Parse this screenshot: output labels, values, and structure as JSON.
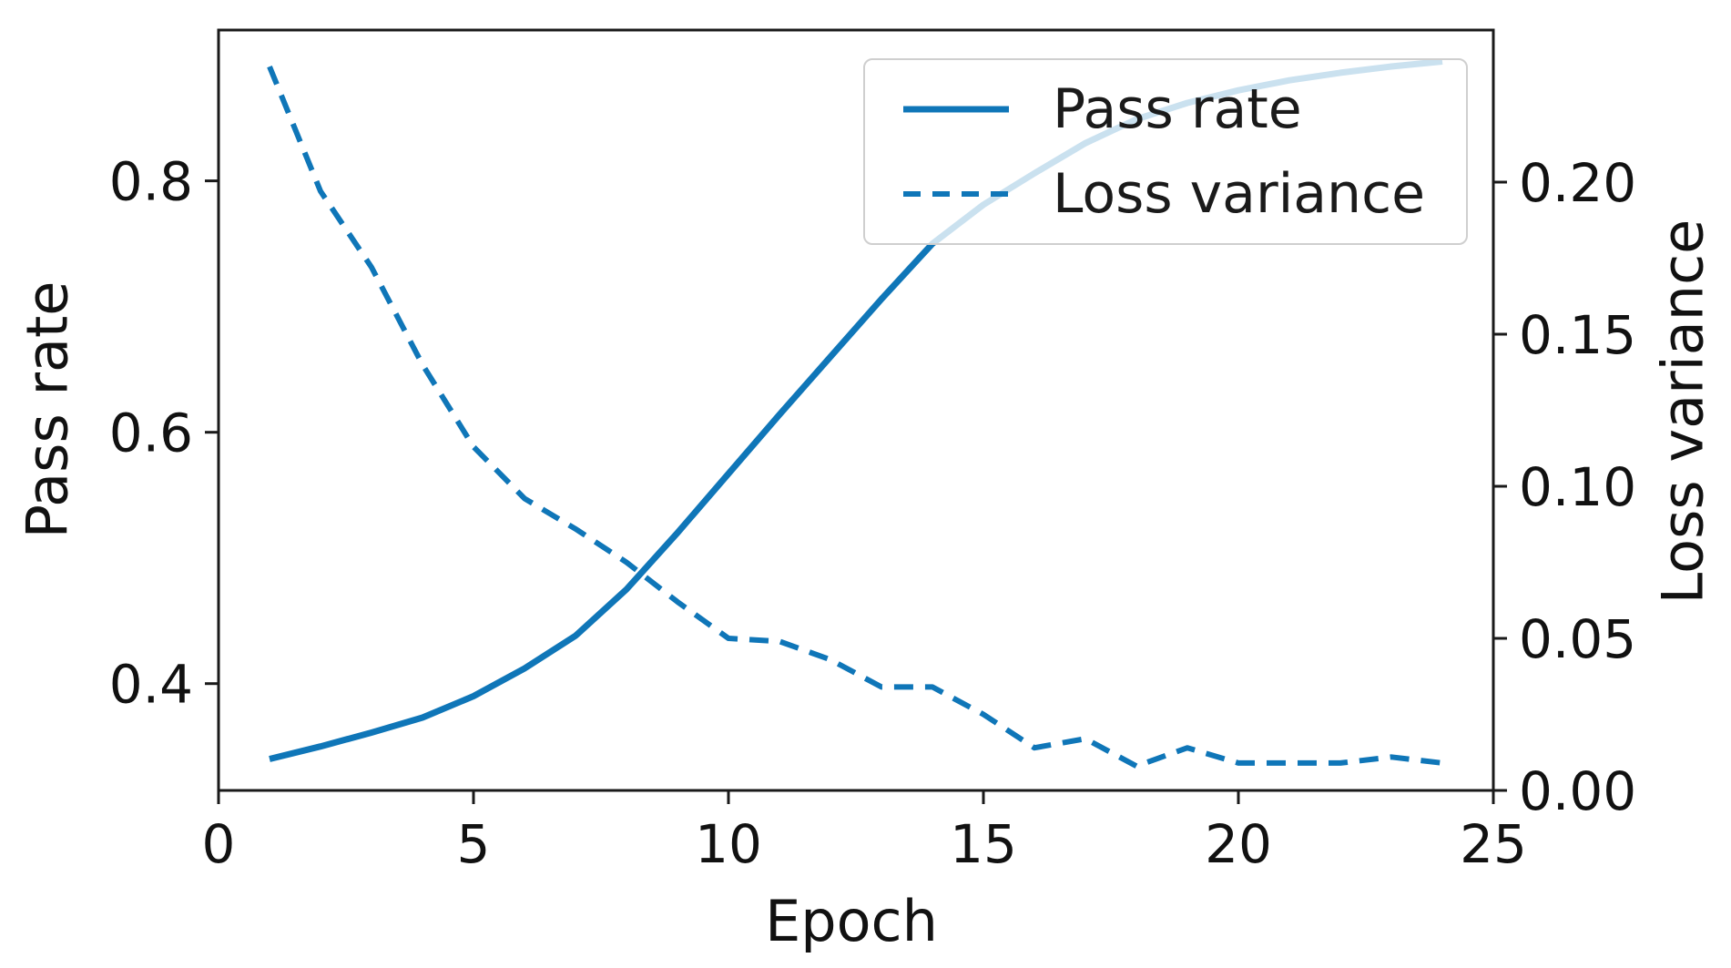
{
  "chart_data": {
    "type": "line",
    "title": "",
    "xlabel": "Epoch",
    "ylabel_left": "Pass rate",
    "ylabel_right": "Loss variance",
    "x": [
      1,
      2,
      3,
      4,
      5,
      6,
      7,
      8,
      9,
      10,
      11,
      12,
      13,
      14,
      15,
      16,
      17,
      18,
      19,
      20,
      21,
      22,
      23,
      24
    ],
    "series": [
      {
        "name": "Pass rate",
        "axis": "left",
        "style": "solid",
        "values": [
          0.34,
          0.35,
          0.361,
          0.373,
          0.39,
          0.412,
          0.438,
          0.475,
          0.52,
          0.567,
          0.614,
          0.66,
          0.706,
          0.75,
          0.781,
          0.806,
          0.83,
          0.849,
          0.862,
          0.872,
          0.88,
          0.886,
          0.891,
          0.895
        ]
      },
      {
        "name": "Loss variance",
        "axis": "right",
        "style": "dashed",
        "values": [
          0.238,
          0.197,
          0.172,
          0.14,
          0.113,
          0.096,
          0.086,
          0.075,
          0.062,
          0.05,
          0.049,
          0.043,
          0.034,
          0.034,
          0.025,
          0.014,
          0.017,
          0.008,
          0.014,
          0.009,
          0.009,
          0.009,
          0.011,
          0.009
        ]
      }
    ],
    "xlim": [
      0,
      25
    ],
    "ylim_left": [
      0.315,
      0.92
    ],
    "ylim_right": [
      0.0,
      0.25
    ],
    "x_ticks": [
      "0",
      "5",
      "10",
      "15",
      "20",
      "25"
    ],
    "x_tick_values": [
      0,
      5,
      10,
      15,
      20,
      25
    ],
    "y_ticks_left": [
      "0.4",
      "0.6",
      "0.8"
    ],
    "y_tick_values_left": [
      0.4,
      0.6,
      0.8
    ],
    "y_ticks_right": [
      "0.00",
      "0.05",
      "0.10",
      "0.15",
      "0.20"
    ],
    "y_tick_values_right": [
      0.0,
      0.05,
      0.1,
      0.15,
      0.2
    ],
    "grid": false,
    "legend_position": "upper right",
    "legend": [
      "Pass rate",
      "Loss variance"
    ]
  },
  "labels": {
    "xlabel": "Epoch",
    "ylabel_left": "Pass rate",
    "ylabel_right": "Loss variance"
  },
  "colors": {
    "line": "#0f76b8",
    "spine": "#1a1a1a",
    "text": "#111111",
    "legend_border": "#cfcfcf"
  }
}
